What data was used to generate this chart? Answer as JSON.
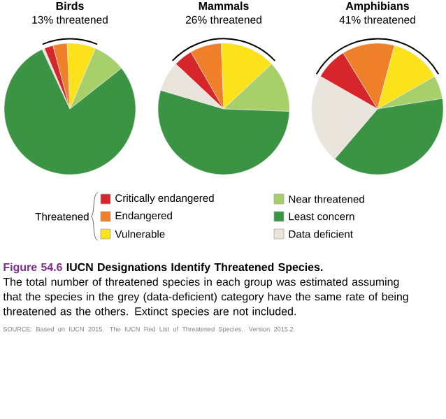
{
  "chart_data": [
    {
      "type": "pie",
      "title": "Birds",
      "subtitle": "13% threatened",
      "categories": [
        "Critically endangered",
        "Endangered",
        "Vulnerable",
        "Near threatened",
        "Least concern",
        "Data deficient"
      ],
      "values": [
        2.2,
        3.5,
        7,
        8,
        78.7,
        0.6
      ],
      "colors": [
        "#d7262b",
        "#f07f2a",
        "#fbe21a",
        "#a8d06a",
        "#3a9444",
        "#e9e4dc"
      ],
      "legend": "bottom",
      "legend_title": "Threatened",
      "annotations": [
        "Figure 54.6",
        "IUCN Designations Identify Threatened Species.",
        "The total number of threatened species in each group was estimated assuming that the species in the grey (data-deficient) category have the same rate of being threatened as the others. Extinct species are not included.",
        "SOURCE: Based on IUCN 2015. The IUCN Red List of Threatened Species. Version 2015.2."
      ]
    },
    {
      "type": "pie",
      "title": "Mammals",
      "subtitle": "26% threatened",
      "categories": [
        null,
        null,
        null,
        null,
        null,
        null
      ],
      "values": [
        4.7,
        7.7,
        13.6,
        12.6,
        54,
        7.4
      ],
      "colors": [
        "#d7262b",
        "#f07f2a",
        "#fbe21a",
        "#a8d06a",
        "#3a9444",
        "#e9e4dc"
      ]
    },
    {
      "type": "pie",
      "title": "Amphibians",
      "subtitle": "41% threatened",
      "categories": [
        null,
        null,
        null,
        null,
        null,
        null
      ],
      "values": [
        8,
        12.9,
        12.6,
        5.7,
        38.8,
        22
      ],
      "colors": [
        "#d7262b",
        "#f07f2a",
        "#fbe21a",
        "#a8d06a",
        "#3a9444",
        "#e9e4dc"
      ]
    }
  ]
}
